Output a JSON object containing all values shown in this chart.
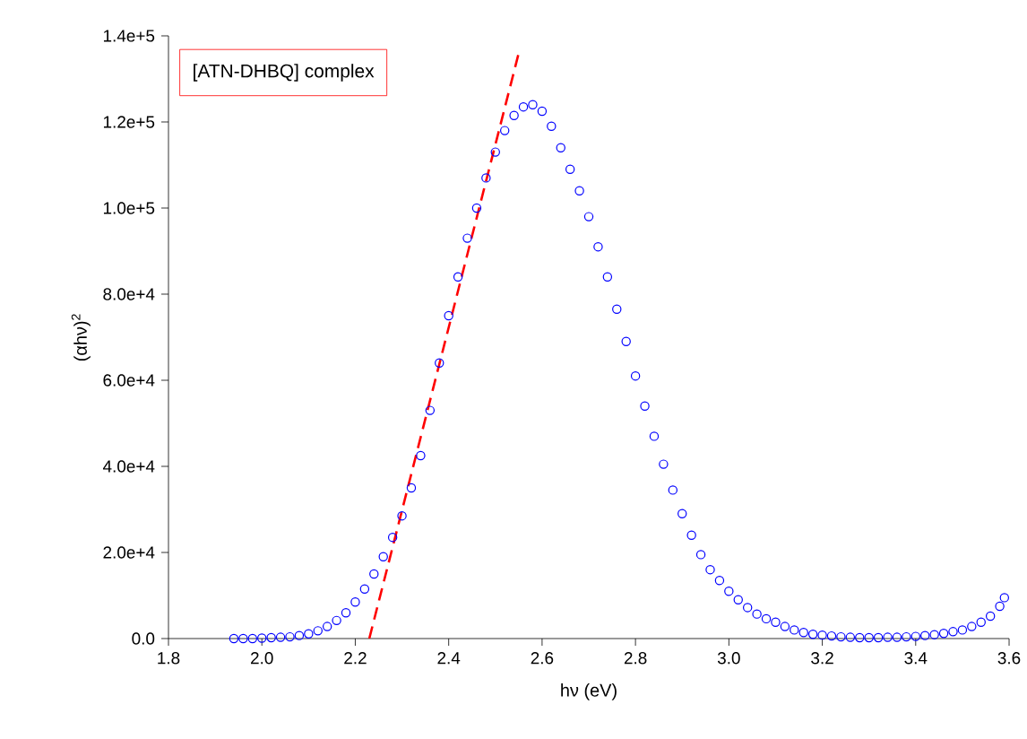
{
  "chart_data": {
    "type": "scatter",
    "xlabel": "hν (eV)",
    "ylabel": "(αhν)$^{2}$",
    "annotations": [
      "[ATN-DHBQ] complex"
    ],
    "xlim": [
      1.8,
      3.6
    ],
    "ylim": [
      0,
      140000
    ],
    "xticks": [
      {
        "value": 1.8,
        "label": "1.8"
      },
      {
        "value": 2.0,
        "label": "2.0"
      },
      {
        "value": 2.2,
        "label": "2.2"
      },
      {
        "value": 2.4,
        "label": "2.4"
      },
      {
        "value": 2.6,
        "label": "2.6"
      },
      {
        "value": 2.8,
        "label": "2.8"
      },
      {
        "value": 3.0,
        "label": "3.0"
      },
      {
        "value": 3.2,
        "label": "3.2"
      },
      {
        "value": 3.4,
        "label": "3.4"
      },
      {
        "value": 3.6,
        "label": "3.6"
      }
    ],
    "yticks": [
      {
        "value": 0,
        "label": "0.0"
      },
      {
        "value": 20000,
        "label": "2.0e+4"
      },
      {
        "value": 40000,
        "label": "4.0e+4"
      },
      {
        "value": 60000,
        "label": "6.0e+4"
      },
      {
        "value": 80000,
        "label": "8.0e+4"
      },
      {
        "value": 100000,
        "label": "1.0e+5"
      },
      {
        "value": 120000,
        "label": "1.2e+5"
      },
      {
        "value": 140000,
        "label": "1.4e+5"
      }
    ],
    "grid": false,
    "marker": "circle",
    "series": [
      {
        "color": "#0000ff",
        "x": [
          1.94,
          1.96,
          1.98,
          2.0,
          2.02,
          2.04,
          2.06,
          2.08,
          2.1,
          2.12,
          2.14,
          2.16,
          2.18,
          2.2,
          2.22,
          2.24,
          2.26,
          2.28,
          2.3,
          2.32,
          2.34,
          2.36,
          2.38,
          2.4,
          2.42,
          2.44,
          2.46,
          2.48,
          2.5,
          2.52,
          2.54,
          2.56,
          2.58,
          2.6,
          2.62,
          2.64,
          2.66,
          2.68,
          2.7,
          2.72,
          2.74,
          2.76,
          2.78,
          2.8,
          2.82,
          2.84,
          2.86,
          2.88,
          2.9,
          2.92,
          2.94,
          2.96,
          2.98,
          3.0,
          3.02,
          3.04,
          3.06,
          3.08,
          3.1,
          3.12,
          3.14,
          3.16,
          3.18,
          3.2,
          3.22,
          3.24,
          3.26,
          3.28,
          3.3,
          3.32,
          3.34,
          3.36,
          3.38,
          3.4,
          3.42,
          3.44,
          3.46,
          3.48,
          3.5,
          3.52,
          3.54,
          3.56,
          3.58,
          3.59
        ],
        "values": [
          0,
          0,
          0,
          100,
          200,
          300,
          400,
          700,
          1100,
          1800,
          2800,
          4200,
          6000,
          8500,
          11500,
          15000,
          19000,
          23500,
          28500,
          35000,
          42500,
          53000,
          64000,
          75000,
          84000,
          93000,
          100000,
          107000,
          113000,
          118000,
          121500,
          123500,
          124000,
          122500,
          119000,
          114000,
          109000,
          104000,
          98000,
          91000,
          84000,
          76500,
          69000,
          61000,
          54000,
          47000,
          40500,
          34500,
          29000,
          24000,
          19500,
          16000,
          13500,
          11000,
          9000,
          7200,
          5700,
          4600,
          3800,
          2800,
          2000,
          1400,
          1000,
          800,
          600,
          400,
          300,
          200,
          200,
          200,
          300,
          300,
          400,
          500,
          700,
          900,
          1200,
          1600,
          2000,
          2800,
          3800,
          5200,
          7500,
          9500
        ]
      },
      {
        "type": "line",
        "color": "#ff0000",
        "marker": "none",
        "line_style": "dashed",
        "x": [
          2.23,
          2.55
        ],
        "values": [
          0,
          136000
        ]
      }
    ]
  }
}
